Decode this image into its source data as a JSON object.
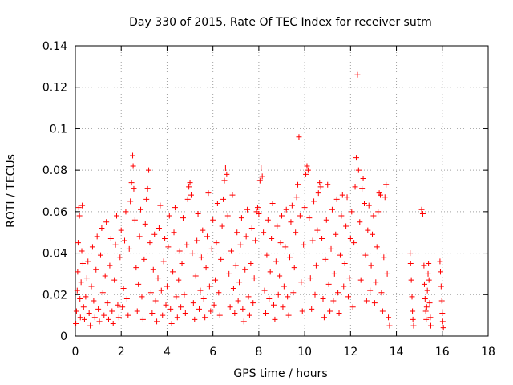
{
  "chart_data": {
    "type": "scatter",
    "title": "Day 330 of 2015, Rate Of TEC Index for receiver sutm",
    "xlabel": "GPS time / hours",
    "ylabel": "ROTI / TECUs",
    "xlim": [
      0,
      18
    ],
    "ylim": [
      0,
      0.14
    ],
    "x_ticks": [
      0,
      2,
      4,
      6,
      8,
      10,
      12,
      14,
      16,
      18
    ],
    "y_ticks": [
      0,
      0.02,
      0.04,
      0.06,
      0.08,
      0.1,
      0.12,
      0.14
    ],
    "x_tick_labels": [
      "0",
      "2",
      "4",
      "6",
      "8",
      "10",
      "12",
      "14",
      "16",
      "18"
    ],
    "y_tick_labels": [
      "0",
      "0.02",
      "0.04",
      "0.06",
      "0.08",
      "0.1",
      "0.12",
      "0.14"
    ],
    "grid": true,
    "marker": "plus",
    "color": "#ff0000",
    "series": [
      {
        "points": [
          [
            0.02,
            0.006
          ],
          [
            0.05,
            0.012
          ],
          [
            0.08,
            0.022
          ],
          [
            0.1,
            0.031
          ],
          [
            0.12,
            0.045
          ],
          [
            0.15,
            0.062
          ],
          [
            0.18,
            0.058
          ],
          [
            0.2,
            0.018
          ],
          [
            0.22,
            0.009
          ],
          [
            0.25,
            0.026
          ],
          [
            0.28,
            0.041
          ],
          [
            0.3,
            0.063
          ],
          [
            0.33,
            0.035
          ],
          [
            0.36,
            0.014
          ],
          [
            0.4,
            0.008
          ],
          [
            0.45,
            0.019
          ],
          [
            0.5,
            0.028
          ],
          [
            0.55,
            0.036
          ],
          [
            0.6,
            0.011
          ],
          [
            0.65,
            0.005
          ],
          [
            0.7,
            0.024
          ],
          [
            0.75,
            0.043
          ],
          [
            0.8,
            0.017
          ],
          [
            0.85,
            0.009
          ],
          [
            0.9,
            0.032
          ],
          [
            0.95,
            0.048
          ],
          [
            1.0,
            0.013
          ],
          [
            1.05,
            0.007
          ],
          [
            1.1,
            0.039
          ],
          [
            1.15,
            0.052
          ],
          [
            1.2,
            0.021
          ],
          [
            1.25,
            0.01
          ],
          [
            1.3,
            0.029
          ],
          [
            1.35,
            0.055
          ],
          [
            1.4,
            0.016
          ],
          [
            1.45,
            0.008
          ],
          [
            1.5,
            0.034
          ],
          [
            1.55,
            0.047
          ],
          [
            1.6,
            0.012
          ],
          [
            1.65,
            0.006
          ],
          [
            1.7,
            0.027
          ],
          [
            1.75,
            0.044
          ],
          [
            1.8,
            0.058
          ],
          [
            1.85,
            0.015
          ],
          [
            1.9,
            0.009
          ],
          [
            1.95,
            0.038
          ],
          [
            2.0,
            0.051
          ],
          [
            2.05,
            0.014
          ],
          [
            2.1,
            0.023
          ],
          [
            2.15,
            0.046
          ],
          [
            2.2,
            0.06
          ],
          [
            2.25,
            0.018
          ],
          [
            2.3,
            0.01
          ],
          [
            2.35,
            0.042
          ],
          [
            2.4,
            0.065
          ],
          [
            2.45,
            0.074
          ],
          [
            2.5,
            0.087
          ],
          [
            2.52,
            0.082
          ],
          [
            2.55,
            0.071
          ],
          [
            2.6,
            0.056
          ],
          [
            2.65,
            0.033
          ],
          [
            2.7,
            0.012
          ],
          [
            2.75,
            0.025
          ],
          [
            2.8,
            0.048
          ],
          [
            2.85,
            0.061
          ],
          [
            2.9,
            0.019
          ],
          [
            2.95,
            0.008
          ],
          [
            3.0,
            0.037
          ],
          [
            3.05,
            0.054
          ],
          [
            3.1,
            0.066
          ],
          [
            3.15,
            0.071
          ],
          [
            3.2,
            0.08
          ],
          [
            3.25,
            0.045
          ],
          [
            3.3,
            0.021
          ],
          [
            3.35,
            0.011
          ],
          [
            3.4,
            0.032
          ],
          [
            3.45,
            0.049
          ],
          [
            3.5,
            0.017
          ],
          [
            3.55,
            0.007
          ],
          [
            3.6,
            0.028
          ],
          [
            3.65,
            0.052
          ],
          [
            3.7,
            0.063
          ],
          [
            3.75,
            0.022
          ],
          [
            3.8,
            0.01
          ],
          [
            3.85,
            0.036
          ],
          [
            3.9,
            0.047
          ],
          [
            3.95,
            0.015
          ],
          [
            4.0,
            0.024
          ],
          [
            4.05,
            0.043
          ],
          [
            4.1,
            0.058
          ],
          [
            4.15,
            0.013
          ],
          [
            4.2,
            0.006
          ],
          [
            4.25,
            0.031
          ],
          [
            4.3,
            0.05
          ],
          [
            4.35,
            0.062
          ],
          [
            4.4,
            0.019
          ],
          [
            4.45,
            0.009
          ],
          [
            4.5,
            0.027
          ],
          [
            4.55,
            0.041
          ],
          [
            4.6,
            0.014
          ],
          [
            4.65,
            0.035
          ],
          [
            4.7,
            0.057
          ],
          [
            4.75,
            0.02
          ],
          [
            4.8,
            0.011
          ],
          [
            4.85,
            0.044
          ],
          [
            4.9,
            0.066
          ],
          [
            4.95,
            0.072
          ],
          [
            5.0,
            0.074
          ],
          [
            5.05,
            0.068
          ],
          [
            5.1,
            0.04
          ],
          [
            5.15,
            0.016
          ],
          [
            5.2,
            0.008
          ],
          [
            5.25,
            0.029
          ],
          [
            5.3,
            0.046
          ],
          [
            5.35,
            0.059
          ],
          [
            5.4,
            0.013
          ],
          [
            5.45,
            0.022
          ],
          [
            5.5,
            0.038
          ],
          [
            5.55,
            0.051
          ],
          [
            5.6,
            0.018
          ],
          [
            5.65,
            0.009
          ],
          [
            5.7,
            0.033
          ],
          [
            5.75,
            0.048
          ],
          [
            5.8,
            0.069
          ],
          [
            5.85,
            0.024
          ],
          [
            5.9,
            0.012
          ],
          [
            5.95,
            0.042
          ],
          [
            6.0,
            0.056
          ],
          [
            6.05,
            0.015
          ],
          [
            6.1,
            0.027
          ],
          [
            6.15,
            0.045
          ],
          [
            6.2,
            0.064
          ],
          [
            6.25,
            0.021
          ],
          [
            6.3,
            0.01
          ],
          [
            6.35,
            0.037
          ],
          [
            6.4,
            0.053
          ],
          [
            6.45,
            0.066
          ],
          [
            6.5,
            0.075
          ],
          [
            6.55,
            0.081
          ],
          [
            6.6,
            0.078
          ],
          [
            6.65,
            0.058
          ],
          [
            6.7,
            0.03
          ],
          [
            6.75,
            0.014
          ],
          [
            6.8,
            0.041
          ],
          [
            6.85,
            0.068
          ],
          [
            6.9,
            0.023
          ],
          [
            6.95,
            0.011
          ],
          [
            7.0,
            0.034
          ],
          [
            7.05,
            0.05
          ],
          [
            7.1,
            0.017
          ],
          [
            7.15,
            0.026
          ],
          [
            7.2,
            0.044
          ],
          [
            7.25,
            0.057
          ],
          [
            7.3,
            0.013
          ],
          [
            7.35,
            0.007
          ],
          [
            7.4,
            0.032
          ],
          [
            7.45,
            0.048
          ],
          [
            7.5,
            0.061
          ],
          [
            7.55,
            0.019
          ],
          [
            7.6,
            0.01
          ],
          [
            7.65,
            0.035
          ],
          [
            7.7,
            0.052
          ],
          [
            7.75,
            0.016
          ],
          [
            7.8,
            0.028
          ],
          [
            7.85,
            0.046
          ],
          [
            7.9,
            0.06
          ],
          [
            7.95,
            0.062
          ],
          [
            8.0,
            0.059
          ],
          [
            8.05,
            0.075
          ],
          [
            8.1,
            0.081
          ],
          [
            8.15,
            0.077
          ],
          [
            8.2,
            0.05
          ],
          [
            8.25,
            0.022
          ],
          [
            8.3,
            0.011
          ],
          [
            8.35,
            0.039
          ],
          [
            8.4,
            0.056
          ],
          [
            8.45,
            0.018
          ],
          [
            8.5,
            0.031
          ],
          [
            8.55,
            0.047
          ],
          [
            8.6,
            0.064
          ],
          [
            8.65,
            0.015
          ],
          [
            8.7,
            0.008
          ],
          [
            8.75,
            0.036
          ],
          [
            8.8,
            0.053
          ],
          [
            8.85,
            0.02
          ],
          [
            8.9,
            0.029
          ],
          [
            8.95,
            0.045
          ],
          [
            9.0,
            0.058
          ],
          [
            9.05,
            0.014
          ],
          [
            9.1,
            0.024
          ],
          [
            9.15,
            0.043
          ],
          [
            9.2,
            0.061
          ],
          [
            9.25,
            0.019
          ],
          [
            9.3,
            0.01
          ],
          [
            9.35,
            0.038
          ],
          [
            9.4,
            0.055
          ],
          [
            9.45,
            0.063
          ],
          [
            9.5,
            0.021
          ],
          [
            9.55,
            0.033
          ],
          [
            9.6,
            0.05
          ],
          [
            9.65,
            0.067
          ],
          [
            9.7,
            0.073
          ],
          [
            9.75,
            0.096
          ],
          [
            9.8,
            0.058
          ],
          [
            9.85,
            0.026
          ],
          [
            9.9,
            0.012
          ],
          [
            9.95,
            0.044
          ],
          [
            10.0,
            0.062
          ],
          [
            10.05,
            0.078
          ],
          [
            10.1,
            0.082
          ],
          [
            10.15,
            0.08
          ],
          [
            10.2,
            0.057
          ],
          [
            10.25,
            0.028
          ],
          [
            10.3,
            0.013
          ],
          [
            10.35,
            0.046
          ],
          [
            10.4,
            0.065
          ],
          [
            10.45,
            0.02
          ],
          [
            10.5,
            0.034
          ],
          [
            10.55,
            0.051
          ],
          [
            10.6,
            0.069
          ],
          [
            10.65,
            0.074
          ],
          [
            10.7,
            0.072
          ],
          [
            10.75,
            0.047
          ],
          [
            10.8,
            0.018
          ],
          [
            10.85,
            0.009
          ],
          [
            10.9,
            0.037
          ],
          [
            10.95,
            0.056
          ],
          [
            11.0,
            0.073
          ],
          [
            11.05,
            0.025
          ],
          [
            11.1,
            0.012
          ],
          [
            11.15,
            0.042
          ],
          [
            11.2,
            0.061
          ],
          [
            11.25,
            0.017
          ],
          [
            11.3,
            0.03
          ],
          [
            11.35,
            0.049
          ],
          [
            11.4,
            0.066
          ],
          [
            11.45,
            0.021
          ],
          [
            11.5,
            0.011
          ],
          [
            11.55,
            0.039
          ],
          [
            11.6,
            0.058
          ],
          [
            11.65,
            0.068
          ],
          [
            11.7,
            0.024
          ],
          [
            11.75,
            0.035
          ],
          [
            11.8,
            0.053
          ],
          [
            11.85,
            0.067
          ],
          [
            11.9,
            0.019
          ],
          [
            11.95,
            0.028
          ],
          [
            12.0,
            0.047
          ],
          [
            12.05,
            0.06
          ],
          [
            12.1,
            0.014
          ],
          [
            12.15,
            0.045
          ],
          [
            12.2,
            0.072
          ],
          [
            12.25,
            0.086
          ],
          [
            12.3,
            0.126
          ],
          [
            12.35,
            0.08
          ],
          [
            12.4,
            0.055
          ],
          [
            12.45,
            0.027
          ],
          [
            12.5,
            0.071
          ],
          [
            12.55,
            0.076
          ],
          [
            12.6,
            0.064
          ],
          [
            12.65,
            0.039
          ],
          [
            12.7,
            0.017
          ],
          [
            12.75,
            0.051
          ],
          [
            12.8,
            0.063
          ],
          [
            12.85,
            0.022
          ],
          [
            12.9,
            0.034
          ],
          [
            12.95,
            0.049
          ],
          [
            13.0,
            0.058
          ],
          [
            13.05,
            0.016
          ],
          [
            13.1,
            0.026
          ],
          [
            13.15,
            0.043
          ],
          [
            13.2,
            0.06
          ],
          [
            13.25,
            0.069
          ],
          [
            13.3,
            0.068
          ],
          [
            13.35,
            0.021
          ],
          [
            13.4,
            0.012
          ],
          [
            13.45,
            0.038
          ],
          [
            13.5,
            0.067
          ],
          [
            13.55,
            0.073
          ],
          [
            13.6,
            0.03
          ],
          [
            13.65,
            0.009
          ],
          [
            13.7,
            0.005
          ],
          [
            14.6,
            0.04
          ],
          [
            14.62,
            0.035
          ],
          [
            14.65,
            0.027
          ],
          [
            14.68,
            0.019
          ],
          [
            14.7,
            0.012
          ],
          [
            14.72,
            0.008
          ],
          [
            14.75,
            0.005
          ],
          [
            15.1,
            0.061
          ],
          [
            15.15,
            0.059
          ],
          [
            15.2,
            0.034
          ],
          [
            15.22,
            0.025
          ],
          [
            15.25,
            0.018
          ],
          [
            15.28,
            0.012
          ],
          [
            15.3,
            0.008
          ],
          [
            15.32,
            0.014
          ],
          [
            15.35,
            0.022
          ],
          [
            15.38,
            0.03
          ],
          [
            15.4,
            0.035
          ],
          [
            15.42,
            0.027
          ],
          [
            15.45,
            0.016
          ],
          [
            15.48,
            0.009
          ],
          [
            15.5,
            0.005
          ],
          [
            15.9,
            0.036
          ],
          [
            15.92,
            0.031
          ],
          [
            15.95,
            0.024
          ],
          [
            15.98,
            0.017
          ],
          [
            16.0,
            0.011
          ],
          [
            16.02,
            0.007
          ],
          [
            16.05,
            0.004
          ]
        ]
      }
    ]
  }
}
